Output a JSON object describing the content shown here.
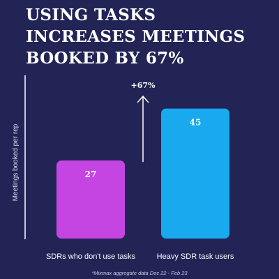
{
  "title_lines": [
    "USING TASKS",
    "INCREASES MEETINGS",
    "BOOKED BY 67%"
  ],
  "footnote": "*Mixmax aggregate data Dec 22 - Feb 23",
  "colors": {
    "background": "#222456",
    "bar_1": "#c545e3",
    "bar_2": "#19a9ee",
    "text": "#ffffff"
  },
  "chart_data": {
    "type": "bar",
    "title": "USING TASKS INCREASES MEETINGS BOOKED BY 67%",
    "xlabel": "",
    "ylabel": "Meetings booked per rep",
    "categories": [
      "SDRs who don't use tasks",
      "Heavy SDR task users"
    ],
    "values": [
      27,
      45
    ],
    "ylim": [
      0,
      56
    ],
    "grid": false,
    "annotation": {
      "text": "+67%",
      "from": "SDRs who don't use tasks",
      "to": "Heavy SDR task users",
      "arrow": "up"
    }
  }
}
